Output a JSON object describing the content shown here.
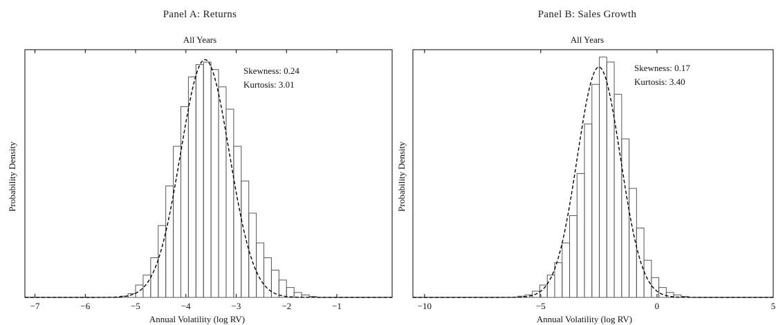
{
  "chart_data": [
    {
      "type": "histogram",
      "panel_title": "Panel A: Returns",
      "title": "All Years",
      "xlabel": "Annual Volatility (log RV)",
      "ylabel": "Probability Density",
      "xlim": [
        -7.2,
        0.1
      ],
      "ylim": [
        0,
        1.0
      ],
      "xticks": [
        -7,
        -6,
        -5,
        -4,
        -3,
        -2,
        -1
      ],
      "annotations": [
        "Skewness: 0.24",
        "Kurtosis: 3.01"
      ],
      "histogram": {
        "bin_width": 0.15,
        "bin_start": -5.3,
        "densities": [
          0.005,
          0.015,
          0.05,
          0.09,
          0.16,
          0.29,
          0.45,
          0.61,
          0.77,
          0.89,
          0.94,
          0.95,
          0.92,
          0.85,
          0.76,
          0.61,
          0.47,
          0.34,
          0.22,
          0.16,
          0.11,
          0.07,
          0.04,
          0.02,
          0.01,
          0.004
        ]
      },
      "fit": {
        "kind": "normal",
        "mean": -3.62,
        "sd": 0.485,
        "peak_density": 0.96
      },
      "grid": false,
      "legend": "none"
    },
    {
      "type": "histogram",
      "panel_title": "Panel B: Sales Growth",
      "title": "All Years",
      "xlabel": "Annual Volatility (log RV)",
      "ylabel": "Probability Density",
      "xlim": [
        -10.5,
        5
      ],
      "ylim": [
        0,
        1.0
      ],
      "xticks": [
        -10,
        -5,
        0,
        5
      ],
      "annotations": [
        "Skewness: 0.17",
        "Kurtosis: 3.40"
      ],
      "histogram": {
        "bin_width": 0.32,
        "bin_start": -6.0,
        "densities": [
          0.005,
          0.01,
          0.025,
          0.05,
          0.09,
          0.14,
          0.22,
          0.33,
          0.5,
          0.7,
          0.86,
          0.97,
          0.95,
          0.82,
          0.64,
          0.44,
          0.28,
          0.15,
          0.08,
          0.04,
          0.02,
          0.01,
          0.004
        ]
      },
      "fit": {
        "kind": "normal",
        "mean": -2.5,
        "sd": 0.93,
        "peak_density": 0.93
      },
      "grid": false,
      "legend": "none"
    }
  ]
}
